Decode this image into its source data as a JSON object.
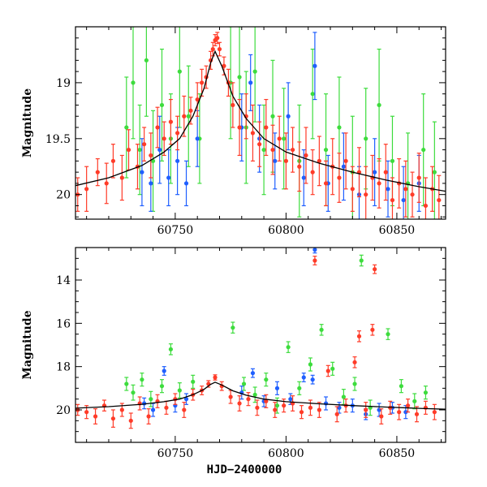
{
  "chart_data": [
    {
      "type": "scatter",
      "xlim": [
        60705,
        60872
      ],
      "ylim": [
        20.22,
        18.5
      ],
      "y_inverted": true,
      "ylabel": "Magnitude",
      "xlabel": "",
      "x_ticks": [
        60750,
        60800,
        60850
      ],
      "x_tick_labels": [
        "60750",
        "60800",
        "60850"
      ],
      "y_ticks": [
        19,
        19.5,
        20
      ],
      "y_tick_labels": [
        "19",
        "19.5",
        "20"
      ],
      "series_colors": {
        "red": "#ff3b28",
        "green": "#3ddc3d",
        "blue": "#1f5fff"
      },
      "model_curve": {
        "color": "#000000",
        "x": [
          60705,
          60720,
          60735,
          60745,
          60752,
          60758,
          60763,
          60766,
          60768,
          60771,
          60776,
          60782,
          60790,
          60800,
          60815,
          60830,
          60845,
          60860,
          60872
        ],
        "y": [
          19.92,
          19.85,
          19.74,
          19.62,
          19.5,
          19.3,
          19.05,
          18.82,
          18.72,
          18.85,
          19.12,
          19.32,
          19.5,
          19.62,
          19.72,
          19.8,
          19.87,
          19.93,
          19.97
        ]
      },
      "series": [
        {
          "color": "red",
          "x": [
            60706,
            60710,
            60715,
            60719,
            60722,
            60726,
            60729,
            60733,
            60736,
            60739,
            60742,
            60745,
            60748,
            60751,
            60754,
            60757,
            60760,
            60762,
            60764,
            60766,
            60767,
            60768,
            60769,
            60770,
            60772,
            60774,
            60776,
            60779,
            60782,
            60785,
            60788,
            60791,
            60794,
            60797,
            60800,
            60803,
            60806,
            60809,
            60812,
            60815,
            60818,
            60821,
            60824,
            60827,
            60830,
            60833,
            60836,
            60839,
            60842,
            60845,
            60848,
            60851,
            60854,
            60857,
            60860,
            60863,
            60866,
            60869
          ],
          "y": [
            20.0,
            19.95,
            19.8,
            19.9,
            19.7,
            19.85,
            19.6,
            19.75,
            19.55,
            19.65,
            19.4,
            19.5,
            19.35,
            19.45,
            19.3,
            19.25,
            19.15,
            19.0,
            18.95,
            18.8,
            18.7,
            18.62,
            18.6,
            18.7,
            18.85,
            19.0,
            19.2,
            19.4,
            19.3,
            19.45,
            19.55,
            19.4,
            19.6,
            19.5,
            19.7,
            19.6,
            19.75,
            19.65,
            19.8,
            19.7,
            19.9,
            19.75,
            19.85,
            19.7,
            19.95,
            19.8,
            20.0,
            19.85,
            19.9,
            19.8,
            20.05,
            19.9,
            19.95,
            20.0,
            19.85,
            20.1,
            19.95,
            20.05
          ],
          "err": [
            0.15,
            0.2,
            0.12,
            0.18,
            0.15,
            0.2,
            0.18,
            0.2,
            0.15,
            0.2,
            0.18,
            0.15,
            0.2,
            0.15,
            0.18,
            0.12,
            0.15,
            0.12,
            0.1,
            0.08,
            0.06,
            0.05,
            0.05,
            0.06,
            0.08,
            0.12,
            0.2,
            0.25,
            0.2,
            0.25,
            0.2,
            0.25,
            0.22,
            0.2,
            0.25,
            0.2,
            0.22,
            0.25,
            0.2,
            0.22,
            0.2,
            0.25,
            0.22,
            0.25,
            0.2,
            0.22,
            0.25,
            0.2,
            0.22,
            0.25,
            0.2,
            0.22,
            0.25,
            0.2,
            0.22,
            0.25,
            0.2,
            0.22
          ]
        },
        {
          "color": "green",
          "x": [
            60728,
            60731,
            60734,
            60737,
            60740,
            60744,
            60748,
            60752,
            60756,
            60761,
            60775,
            60779,
            60782,
            60786,
            60790,
            60794,
            60799,
            60806,
            60812,
            60818,
            60824,
            60830,
            60836,
            60842,
            60848,
            60855,
            60862,
            60867
          ],
          "y": [
            19.4,
            19.0,
            19.6,
            18.8,
            19.7,
            19.2,
            19.5,
            18.9,
            19.3,
            19.5,
            19.0,
            18.95,
            19.4,
            18.9,
            19.6,
            19.3,
            19.5,
            19.7,
            19.1,
            19.6,
            19.4,
            19.8,
            19.5,
            19.2,
            19.7,
            19.9,
            19.6,
            19.8
          ],
          "err": [
            0.45,
            0.5,
            0.4,
            0.5,
            0.45,
            0.5,
            0.4,
            0.5,
            0.45,
            0.4,
            0.5,
            0.45,
            0.5,
            0.45,
            0.4,
            0.5,
            0.45,
            0.5,
            0.4,
            0.5,
            0.45,
            0.5,
            0.45,
            0.5,
            0.4,
            0.45,
            0.5,
            0.45
          ]
        },
        {
          "color": "blue",
          "x": [
            60735,
            60739,
            60743,
            60747,
            60751,
            60755,
            60760,
            60780,
            60784,
            60788,
            60795,
            60801,
            60808,
            60813,
            60819,
            60826,
            60833,
            60840,
            60846,
            60853,
            60860
          ],
          "y": [
            19.8,
            19.9,
            19.6,
            19.85,
            19.7,
            19.9,
            19.5,
            19.4,
            19.0,
            19.5,
            19.7,
            19.3,
            19.85,
            18.85,
            19.9,
            19.75,
            20.0,
            19.8,
            19.95,
            20.05,
            19.9
          ],
          "err": [
            0.3,
            0.25,
            0.3,
            0.25,
            0.3,
            0.2,
            0.25,
            0.3,
            0.25,
            0.3,
            0.25,
            0.3,
            0.25,
            0.3,
            0.25,
            0.3,
            0.25,
            0.3,
            0.25,
            0.3,
            0.25
          ]
        }
      ]
    },
    {
      "type": "scatter",
      "xlim": [
        60705,
        60872
      ],
      "ylim": [
        21.5,
        12.5
      ],
      "y_inverted": true,
      "ylabel": "Magnitude",
      "xlabel": "HJD−2400000",
      "x_ticks": [
        60750,
        60800,
        60850
      ],
      "x_tick_labels": [
        "60750",
        "60800",
        "60850"
      ],
      "y_ticks": [
        14,
        16,
        18,
        20
      ],
      "y_tick_labels": [
        "14",
        "16",
        "18",
        "20"
      ],
      "series_colors": {
        "red": "#ff3b28",
        "green": "#3ddc3d",
        "blue": "#1f5fff"
      },
      "model_curve": {
        "color": "#000000",
        "x": [
          60705,
          60720,
          60735,
          60745,
          60752,
          60758,
          60763,
          60766,
          60768,
          60771,
          60776,
          60782,
          60790,
          60800,
          60815,
          60830,
          60845,
          60860,
          60872
        ],
        "y": [
          19.92,
          19.85,
          19.74,
          19.62,
          19.5,
          19.3,
          19.05,
          18.82,
          18.72,
          18.85,
          19.12,
          19.32,
          19.5,
          19.62,
          19.72,
          19.8,
          19.87,
          19.93,
          19.97
        ]
      },
      "series": [
        {
          "color": "red",
          "x": [
            60706,
            60710,
            60714,
            60718,
            60722,
            60726,
            60730,
            60734,
            60738,
            60742,
            60746,
            60750,
            60754,
            60758,
            60762,
            60765,
            60768,
            60771,
            60775,
            60779,
            60783,
            60787,
            60791,
            60795,
            60799,
            60803,
            60807,
            60811,
            60813,
            60815,
            60819,
            60823,
            60827,
            60831,
            60833,
            60836,
            60839,
            60840,
            60843,
            60847,
            60851,
            60855,
            60859,
            60863,
            60867
          ],
          "y": [
            20.0,
            20.1,
            20.3,
            19.8,
            20.4,
            20.0,
            20.5,
            19.7,
            20.3,
            19.6,
            19.9,
            19.5,
            20.0,
            19.3,
            19.1,
            18.8,
            18.5,
            18.9,
            19.4,
            19.7,
            19.5,
            19.9,
            19.6,
            20.0,
            19.8,
            19.7,
            20.1,
            19.9,
            13.1,
            20.0,
            18.2,
            20.2,
            19.8,
            17.8,
            16.6,
            20.0,
            16.3,
            13.5,
            20.3,
            19.9,
            20.1,
            19.8,
            20.2,
            19.9,
            20.1
          ],
          "err": [
            0.25,
            0.3,
            0.35,
            0.25,
            0.4,
            0.3,
            0.35,
            0.3,
            0.35,
            0.3,
            0.3,
            0.25,
            0.35,
            0.25,
            0.2,
            0.15,
            0.12,
            0.2,
            0.3,
            0.35,
            0.3,
            0.35,
            0.3,
            0.35,
            0.3,
            0.35,
            0.3,
            0.35,
            0.2,
            0.35,
            0.25,
            0.35,
            0.3,
            0.25,
            0.25,
            0.35,
            0.25,
            0.2,
            0.35,
            0.3,
            0.35,
            0.3,
            0.35,
            0.3,
            0.35
          ]
        },
        {
          "color": "green",
          "x": [
            60728,
            60731,
            60735,
            60739,
            60744,
            60748,
            60752,
            60758,
            60776,
            60781,
            60786,
            60791,
            60796,
            60801,
            60806,
            60811,
            60816,
            60821,
            60826,
            60831,
            60834,
            60838,
            60846,
            60852,
            60858,
            60863
          ],
          "y": [
            18.8,
            19.2,
            18.6,
            19.5,
            18.9,
            17.2,
            19.1,
            18.7,
            16.2,
            18.8,
            19.3,
            18.6,
            19.8,
            17.1,
            19.0,
            17.9,
            16.3,
            18.1,
            19.4,
            18.8,
            13.1,
            19.9,
            16.5,
            18.9,
            19.6,
            19.2
          ],
          "err": [
            0.3,
            0.35,
            0.3,
            0.35,
            0.3,
            0.25,
            0.35,
            0.3,
            0.25,
            0.3,
            0.35,
            0.3,
            0.35,
            0.25,
            0.3,
            0.3,
            0.25,
            0.3,
            0.35,
            0.3,
            0.25,
            0.35,
            0.25,
            0.3,
            0.35,
            0.3
          ]
        },
        {
          "color": "blue",
          "x": [
            60736,
            60740,
            60745,
            60750,
            60755,
            60780,
            60785,
            60790,
            60796,
            60802,
            60808,
            60812,
            60813,
            60818,
            60824,
            60830,
            60836,
            60842,
            60848,
            60854
          ],
          "y": [
            19.7,
            20.0,
            18.2,
            19.8,
            19.5,
            19.2,
            18.3,
            19.6,
            19.0,
            19.5,
            18.5,
            18.6,
            12.6,
            19.7,
            19.9,
            19.8,
            20.2,
            20.0,
            19.9,
            20.1
          ],
          "err": [
            0.25,
            0.3,
            0.2,
            0.3,
            0.25,
            0.3,
            0.2,
            0.25,
            0.3,
            0.25,
            0.2,
            0.2,
            0.15,
            0.3,
            0.25,
            0.3,
            0.25,
            0.3,
            0.25,
            0.3
          ]
        }
      ]
    }
  ]
}
